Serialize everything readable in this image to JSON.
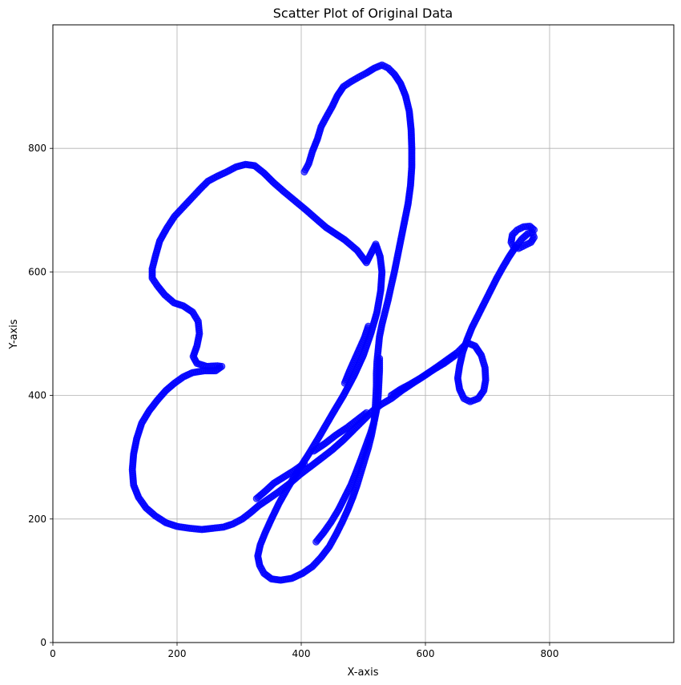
{
  "chart_data": {
    "type": "scatter",
    "title": "Scatter Plot of Original Data",
    "xlabel": "X-axis",
    "ylabel": "Y-axis",
    "xlim": [
      0,
      1000
    ],
    "ylim": [
      0,
      1000
    ],
    "xticks": [
      0,
      200,
      400,
      600,
      800
    ],
    "yticks": [
      0,
      200,
      400,
      600,
      800
    ],
    "grid": true,
    "marker_color": "#0000ff",
    "marker_alpha": 0.6,
    "series": [
      {
        "points": [
          [
            405,
            762
          ],
          [
            412,
            775
          ],
          [
            418,
            795
          ],
          [
            426,
            815
          ],
          [
            432,
            835
          ],
          [
            440,
            850
          ],
          [
            450,
            868
          ],
          [
            458,
            885
          ],
          [
            468,
            900
          ],
          [
            480,
            908
          ],
          [
            492,
            915
          ],
          [
            505,
            922
          ],
          [
            518,
            930
          ],
          [
            530,
            935
          ],
          [
            540,
            930
          ],
          [
            550,
            920
          ],
          [
            560,
            905
          ],
          [
            568,
            885
          ],
          [
            574,
            860
          ],
          [
            577,
            830
          ],
          [
            578,
            800
          ],
          [
            578,
            770
          ],
          [
            576,
            740
          ],
          [
            572,
            710
          ],
          [
            566,
            680
          ],
          [
            560,
            650
          ],
          [
            555,
            625
          ],
          [
            550,
            600
          ],
          [
            545,
            578
          ],
          [
            540,
            555
          ],
          [
            535,
            535
          ],
          [
            530,
            515
          ],
          [
            526,
            495
          ],
          [
            524,
            475
          ],
          [
            522,
            455
          ],
          [
            521,
            435
          ],
          [
            521,
            415
          ],
          [
            520,
            395
          ],
          [
            519,
            375
          ],
          [
            517,
            355
          ],
          [
            513,
            335
          ],
          [
            508,
            315
          ],
          [
            502,
            295
          ],
          [
            496,
            275
          ],
          [
            490,
            255
          ],
          [
            483,
            235
          ],
          [
            475,
            215
          ],
          [
            466,
            195
          ],
          [
            456,
            175
          ],
          [
            445,
            155
          ],
          [
            432,
            138
          ],
          [
            418,
            123
          ],
          [
            402,
            112
          ],
          [
            385,
            104
          ],
          [
            367,
            101
          ],
          [
            352,
            103
          ],
          [
            340,
            112
          ],
          [
            333,
            125
          ],
          [
            330,
            140
          ],
          [
            334,
            158
          ],
          [
            342,
            178
          ],
          [
            352,
            200
          ],
          [
            364,
            225
          ],
          [
            378,
            250
          ],
          [
            394,
            277
          ],
          [
            412,
            305
          ],
          [
            430,
            335
          ],
          [
            449,
            368
          ],
          [
            468,
            400
          ],
          [
            485,
            432
          ],
          [
            500,
            465
          ],
          [
            512,
            500
          ],
          [
            522,
            535
          ],
          [
            528,
            570
          ],
          [
            530,
            600
          ],
          [
            527,
            625
          ],
          [
            520,
            645
          ],
          [
            505,
            615
          ],
          [
            490,
            635
          ],
          [
            470,
            652
          ],
          [
            455,
            662
          ],
          [
            440,
            672
          ],
          [
            425,
            685
          ],
          [
            408,
            700
          ],
          [
            390,
            715
          ],
          [
            372,
            730
          ],
          [
            355,
            745
          ],
          [
            340,
            760
          ],
          [
            325,
            772
          ],
          [
            310,
            774
          ],
          [
            295,
            770
          ],
          [
            280,
            762
          ],
          [
            265,
            755
          ],
          [
            250,
            747
          ],
          [
            238,
            735
          ],
          [
            224,
            720
          ],
          [
            210,
            705
          ],
          [
            196,
            690
          ],
          [
            183,
            670
          ],
          [
            172,
            650
          ],
          [
            165,
            625
          ],
          [
            160,
            605
          ],
          [
            160,
            590
          ],
          [
            168,
            578
          ],
          [
            180,
            563
          ],
          [
            195,
            550
          ],
          [
            210,
            545
          ],
          [
            225,
            535
          ],
          [
            234,
            520
          ],
          [
            236,
            500
          ],
          [
            232,
            480
          ],
          [
            226,
            463
          ],
          [
            232,
            452
          ],
          [
            248,
            447
          ],
          [
            265,
            448
          ],
          [
            272,
            447
          ],
          [
            262,
            440
          ],
          [
            244,
            440
          ],
          [
            225,
            437
          ],
          [
            210,
            430
          ],
          [
            196,
            420
          ],
          [
            182,
            408
          ],
          [
            168,
            392
          ],
          [
            155,
            375
          ],
          [
            143,
            355
          ],
          [
            135,
            330
          ],
          [
            130,
            305
          ],
          [
            128,
            280
          ],
          [
            130,
            255
          ],
          [
            138,
            235
          ],
          [
            150,
            218
          ],
          [
            165,
            205
          ],
          [
            182,
            194
          ],
          [
            200,
            188
          ],
          [
            220,
            185
          ],
          [
            240,
            183
          ],
          [
            258,
            185
          ],
          [
            275,
            187
          ],
          [
            290,
            192
          ],
          [
            305,
            200
          ],
          [
            318,
            210
          ],
          [
            332,
            222
          ],
          [
            348,
            233
          ],
          [
            365,
            245
          ],
          [
            382,
            258
          ],
          [
            398,
            272
          ],
          [
            415,
            285
          ],
          [
            432,
            298
          ],
          [
            450,
            312
          ],
          [
            468,
            328
          ],
          [
            485,
            345
          ],
          [
            500,
            360
          ],
          [
            515,
            375
          ],
          [
            528,
            385
          ],
          [
            545,
            395
          ],
          [
            562,
            408
          ],
          [
            580,
            420
          ],
          [
            600,
            433
          ],
          [
            620,
            447
          ],
          [
            638,
            460
          ],
          [
            652,
            470
          ],
          [
            662,
            480
          ],
          [
            668,
            485
          ],
          [
            680,
            480
          ],
          [
            690,
            465
          ],
          [
            696,
            445
          ],
          [
            697,
            425
          ],
          [
            694,
            408
          ],
          [
            685,
            395
          ],
          [
            672,
            390
          ],
          [
            662,
            395
          ],
          [
            655,
            410
          ],
          [
            652,
            428
          ],
          [
            655,
            448
          ],
          [
            660,
            470
          ],
          [
            667,
            490
          ],
          [
            675,
            510
          ],
          [
            685,
            530
          ],
          [
            695,
            550
          ],
          [
            705,
            570
          ],
          [
            715,
            590
          ],
          [
            725,
            608
          ],
          [
            735,
            625
          ],
          [
            745,
            640
          ],
          [
            755,
            653
          ],
          [
            765,
            662
          ],
          [
            772,
            664
          ],
          [
            775,
            656
          ],
          [
            770,
            648
          ],
          [
            760,
            643
          ],
          [
            750,
            638
          ],
          [
            742,
            640
          ],
          [
            738,
            648
          ],
          [
            740,
            660
          ],
          [
            748,
            668
          ],
          [
            758,
            673
          ],
          [
            768,
            674
          ],
          [
            775,
            668
          ],
          [
            545,
            400
          ],
          [
            560,
            410
          ],
          [
            575,
            418
          ],
          [
            592,
            428
          ],
          [
            610,
            440
          ],
          [
            630,
            452
          ],
          [
            648,
            465
          ],
          [
            526,
            460
          ],
          [
            526,
            440
          ],
          [
            525,
            420
          ],
          [
            524,
            400
          ],
          [
            522,
            380
          ],
          [
            518,
            360
          ],
          [
            512,
            340
          ],
          [
            504,
            318
          ],
          [
            496,
            296
          ],
          [
            488,
            275
          ],
          [
            480,
            255
          ],
          [
            470,
            235
          ],
          [
            460,
            215
          ],
          [
            448,
            195
          ],
          [
            436,
            178
          ],
          [
            424,
            163
          ],
          [
            405,
            290
          ],
          [
            388,
            278
          ],
          [
            372,
            268
          ],
          [
            356,
            258
          ],
          [
            342,
            245
          ],
          [
            328,
            233
          ],
          [
            470,
            420
          ],
          [
            478,
            440
          ],
          [
            486,
            458
          ],
          [
            494,
            476
          ],
          [
            502,
            494
          ],
          [
            508,
            512
          ],
          [
            420,
            310
          ],
          [
            438,
            322
          ],
          [
            456,
            336
          ],
          [
            474,
            348
          ],
          [
            492,
            362
          ],
          [
            505,
            372
          ]
        ]
      }
    ]
  }
}
